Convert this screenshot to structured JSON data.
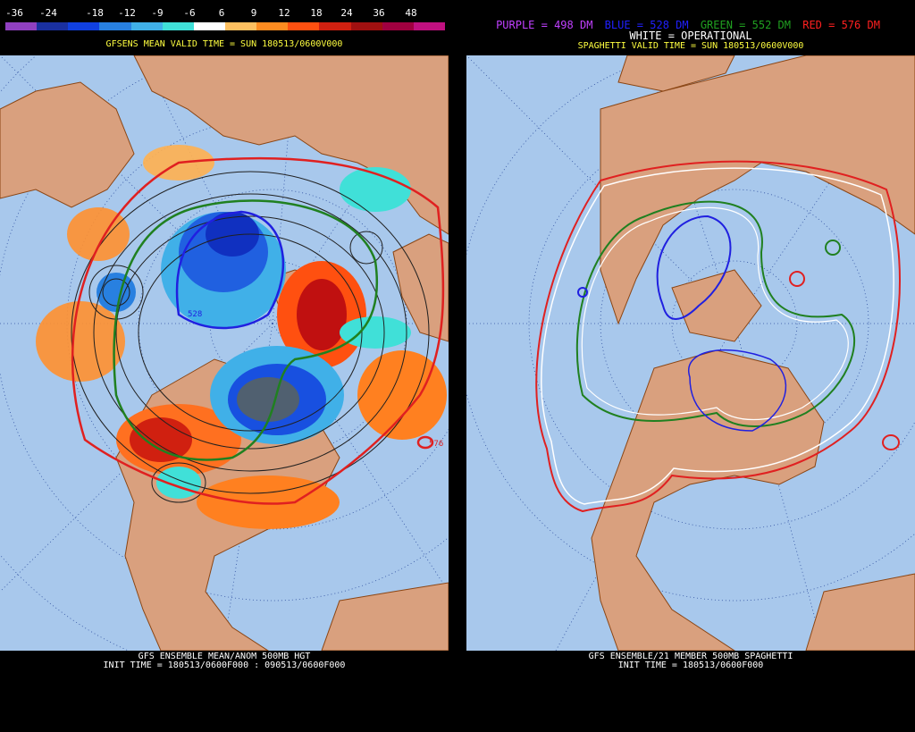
{
  "left": {
    "colorbar": {
      "labels": [
        "-36",
        "-24",
        "-18",
        "-12",
        "-9",
        "-6",
        "6",
        "9",
        "12",
        "18",
        "24",
        "36",
        "48"
      ],
      "colors": [
        "#9040c0",
        "#1a30a0",
        "#1040e0",
        "#2880e0",
        "#40b0e8",
        "#40e0d8",
        "#ffffff",
        "#ffc060",
        "#ff8c20",
        "#ff5010",
        "#d02010",
        "#a01010",
        "#a00040",
        "#c01080"
      ]
    },
    "valid_time": "GFSENS MEAN VALID TIME = SUN 180513/0600V000",
    "footer_line1": "GFS ENSEMBLE MEAN/ANOM 500MB HGT",
    "footer_line2": "INIT TIME = 180513/0600F000 : 090513/0600F000",
    "contour_labels": [
      "576",
      "528"
    ]
  },
  "right": {
    "legend": {
      "purple": "PURPLE = 498 DM",
      "blue": "BLUE = 528 DM",
      "green": "GREEN = 552 DM",
      "red": "RED = 576 DM",
      "white": "WHITE = OPERATIONAL"
    },
    "legend_colors": {
      "purple": "#c040ff",
      "blue": "#2020ff",
      "green": "#20a020",
      "red": "#ff2020",
      "white": "#ffffff"
    },
    "valid_time": "SPAGHETTI VALID TIME = SUN 180513/0600V000",
    "footer_line1": "GFS ENSEMBLE/21 MEMBER 500MB SPAGHETTI",
    "footer_line2": "INIT TIME = 180513/0600F000"
  },
  "map_colors": {
    "ocean": "#a8c8ec",
    "land": "#d9a07e",
    "border": "#8b4513"
  }
}
